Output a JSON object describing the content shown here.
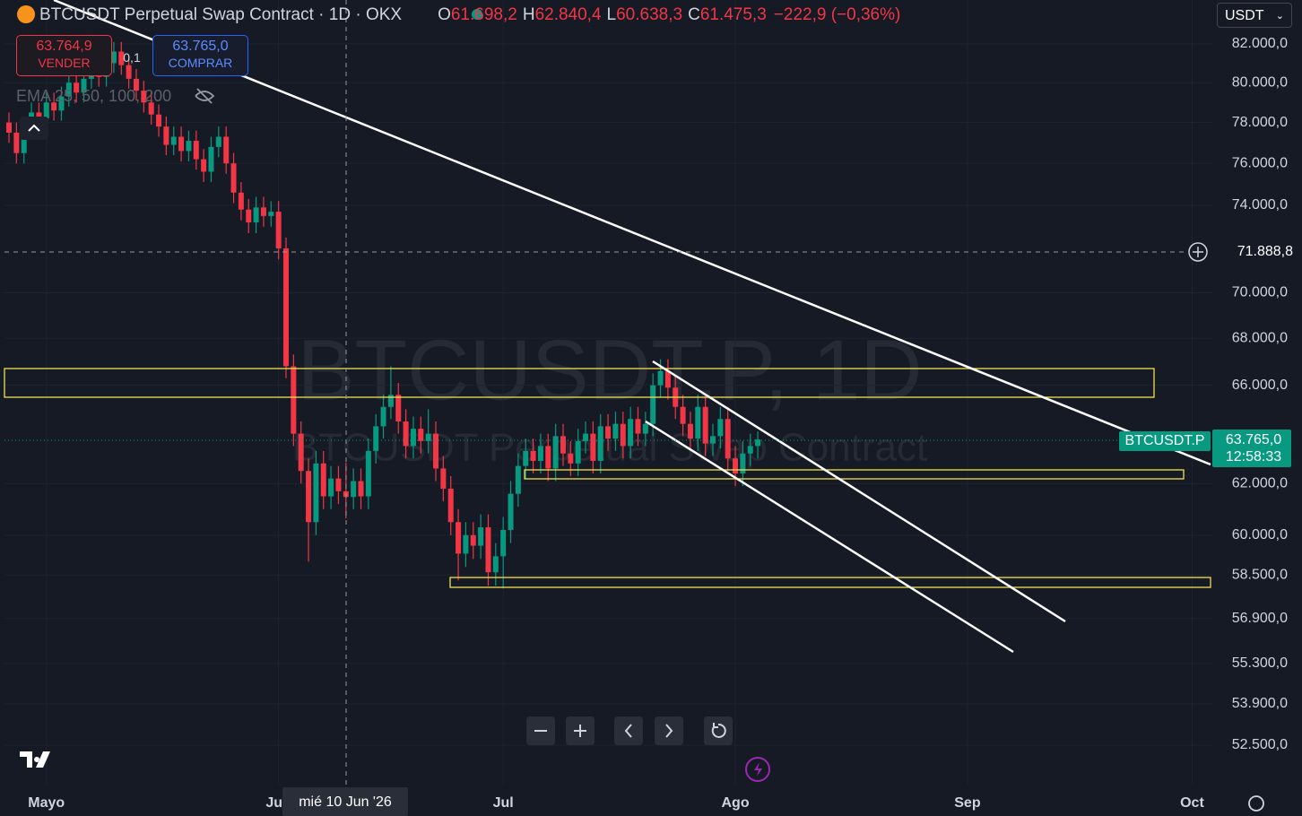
{
  "ui": {
    "header": {
      "symbol": "BTCUSDT Perpetual Swap Contract · 1D · OKX",
      "ohlc": [
        {
          "label": "O",
          "value": "61.698,2"
        },
        {
          "label": "H",
          "value": "62.840,4"
        },
        {
          "label": "L",
          "value": "60.638,3"
        },
        {
          "label": "C",
          "value": "61.475,3"
        }
      ],
      "change": "−222,9 (−0,36%)"
    },
    "trade": {
      "sell_price": "63.764,9",
      "sell_label": "VENDER",
      "quantity": "0,1",
      "buy_price": "63.765,0",
      "buy_label": "COMPRAR"
    },
    "indicator": "EMA 25, 50, 100, 200",
    "currency": "USDT",
    "crosshair": {
      "price": "71.888,8",
      "date": "mié 10 Jun '26"
    },
    "last_price": {
      "symbol": "BTCUSDT.P",
      "price": "63.765,0",
      "countdown": "12:58:33"
    }
  },
  "chart_data": {
    "type": "candlestick",
    "title": "BTCUSDT.P, 1D",
    "subtitle": "BTCUSDT Perpetual Swap Contract",
    "up_color": "#089981",
    "down_color": "#f23645",
    "log_scale": true,
    "grid": true,
    "xlim": [
      -0.6,
      160.7
    ],
    "xticks": [
      {
        "value": 5,
        "label": "Mayo"
      },
      {
        "value": 36,
        "label": "Jun"
      },
      {
        "value": 66,
        "label": "Jul"
      },
      {
        "value": 97,
        "label": "Ago"
      },
      {
        "value": 128,
        "label": "Sep"
      },
      {
        "value": 158,
        "label": "Oct"
      }
    ],
    "ylim": [
      51200,
      84320
    ],
    "yticks": [
      {
        "value": 52500,
        "label": "52.500,0"
      },
      {
        "value": 53900,
        "label": "53.900,0"
      },
      {
        "value": 55300,
        "label": "55.300,0"
      },
      {
        "value": 56900,
        "label": "56.900,0"
      },
      {
        "value": 58500,
        "label": "58.500,0"
      },
      {
        "value": 60000,
        "label": "60.000,0"
      },
      {
        "value": 62000,
        "label": "62.000,0"
      },
      {
        "value": 66000,
        "label": "66.000,0"
      },
      {
        "value": 68000,
        "label": "68.000,0"
      },
      {
        "value": 70000,
        "label": "70.000,0"
      },
      {
        "value": 74000,
        "label": "74.000,0"
      },
      {
        "value": 76000,
        "label": "76.000,0"
      },
      {
        "value": 78000,
        "label": "78.000,0"
      },
      {
        "value": 80000,
        "label": "80.000,0"
      },
      {
        "value": 82000,
        "label": "82.000,0"
      }
    ],
    "open": [
      78000,
      77500,
      76500,
      77800,
      78500,
      78200,
      79000,
      78600,
      79300,
      80000,
      79500,
      80200,
      80800,
      80300,
      81000,
      81600,
      80900,
      80200,
      79600,
      79000,
      78400,
      77800,
      76900,
      77300,
      76600,
      77100,
      76200,
      75600,
      76800,
      77300,
      76000,
      74600,
      73800,
      73200,
      73900,
      73500,
      73700,
      72000,
      66800,
      64000,
      62500,
      60500,
      62800,
      61500,
      62200,
      61698.2,
      61475.3,
      62100,
      61500,
      63300,
      64300,
      65100,
      65600,
      64500,
      63500,
      64200,
      63700,
      64000,
      62600,
      61800,
      60500,
      59300,
      60000,
      59600,
      60300,
      58600,
      59200,
      60200,
      61600,
      62700,
      63300,
      62900,
      63500,
      62600,
      63900,
      63200,
      62800,
      63700,
      64000,
      62900,
      64300,
      63800,
      64400,
      63500,
      64600,
      64000,
      64400,
      66000,
      66600,
      65900,
      65100,
      64400,
      63800,
      65100,
      63600,
      63900,
      64600,
      63000,
      62400,
      63200,
      63500
    ],
    "high": [
      78500,
      78000,
      78300,
      79000,
      79000,
      79500,
      79500,
      79800,
      80500,
      80500,
      80700,
      81300,
      81300,
      81500,
      82100,
      82100,
      81400,
      80700,
      80100,
      79500,
      78900,
      78300,
      77800,
      77800,
      77600,
      77600,
      76700,
      77300,
      77800,
      77800,
      76500,
      75100,
      74300,
      74400,
      74400,
      74200,
      74200,
      72500,
      67300,
      64500,
      63000,
      63300,
      63300,
      62700,
      62700,
      62840.4,
      62600,
      62600,
      63800,
      64800,
      65600,
      66800,
      66100,
      65000,
      64700,
      64700,
      65000,
      64500,
      63100,
      62300,
      61000,
      60500,
      60500,
      60800,
      60800,
      59700,
      60700,
      62100,
      63200,
      63800,
      63800,
      64000,
      64000,
      64400,
      64400,
      63700,
      64200,
      64500,
      64500,
      64800,
      64800,
      64900,
      64900,
      65100,
      65100,
      64900,
      66500,
      67100,
      67100,
      66400,
      65600,
      64900,
      65600,
      65600,
      64400,
      65100,
      65100,
      63500,
      63700,
      64000,
      64100
    ],
    "low": [
      77000,
      76000,
      76000,
      77300,
      77700,
      77700,
      78100,
      78100,
      78800,
      79000,
      79000,
      79700,
      79800,
      79800,
      80500,
      80400,
      79700,
      79100,
      78500,
      77900,
      77300,
      76400,
      76400,
      76100,
      76100,
      75700,
      75100,
      75100,
      76300,
      75500,
      74100,
      73300,
      72700,
      72700,
      73000,
      73000,
      71500,
      66300,
      63500,
      62000,
      59000,
      60000,
      61000,
      61000,
      61200,
      60638.3,
      61000,
      61000,
      61000,
      62800,
      63800,
      64600,
      64000,
      63000,
      63000,
      63200,
      63200,
      62100,
      61300,
      60000,
      58300,
      58800,
      59100,
      59100,
      58100,
      58100,
      58000,
      59700,
      61100,
      62200,
      62400,
      62400,
      62100,
      62100,
      62700,
      62300,
      62300,
      63200,
      62400,
      62400,
      63300,
      63300,
      63000,
      63000,
      63500,
      63500,
      63900,
      65500,
      65400,
      64600,
      63900,
      63300,
      63300,
      63100,
      63100,
      63400,
      62500,
      61900,
      61900,
      62700,
      63000
    ],
    "close": [
      77500,
      76500,
      77800,
      78500,
      78200,
      79000,
      78600,
      79300,
      80000,
      79500,
      80200,
      80800,
      80300,
      81000,
      81600,
      80900,
      80200,
      79600,
      79000,
      78400,
      77800,
      76900,
      77300,
      76600,
      77100,
      76200,
      75600,
      76800,
      77300,
      76000,
      74600,
      73800,
      73200,
      73900,
      73500,
      73700,
      72000,
      66800,
      64000,
      62500,
      60500,
      62800,
      61500,
      62200,
      61698.2,
      61475.3,
      62100,
      61500,
      63300,
      64300,
      65100,
      65600,
      64500,
      63500,
      64200,
      63700,
      64000,
      62600,
      61800,
      60500,
      59300,
      60000,
      59600,
      60300,
      58600,
      59200,
      60200,
      61600,
      62700,
      63300,
      62900,
      63500,
      62600,
      63900,
      63200,
      62800,
      63700,
      64000,
      62900,
      64300,
      63800,
      64400,
      63500,
      64600,
      64000,
      64400,
      66000,
      66600,
      65900,
      65100,
      64400,
      63800,
      65100,
      63600,
      63900,
      64600,
      63000,
      62400,
      63200,
      63500,
      63765
    ]
  }
}
